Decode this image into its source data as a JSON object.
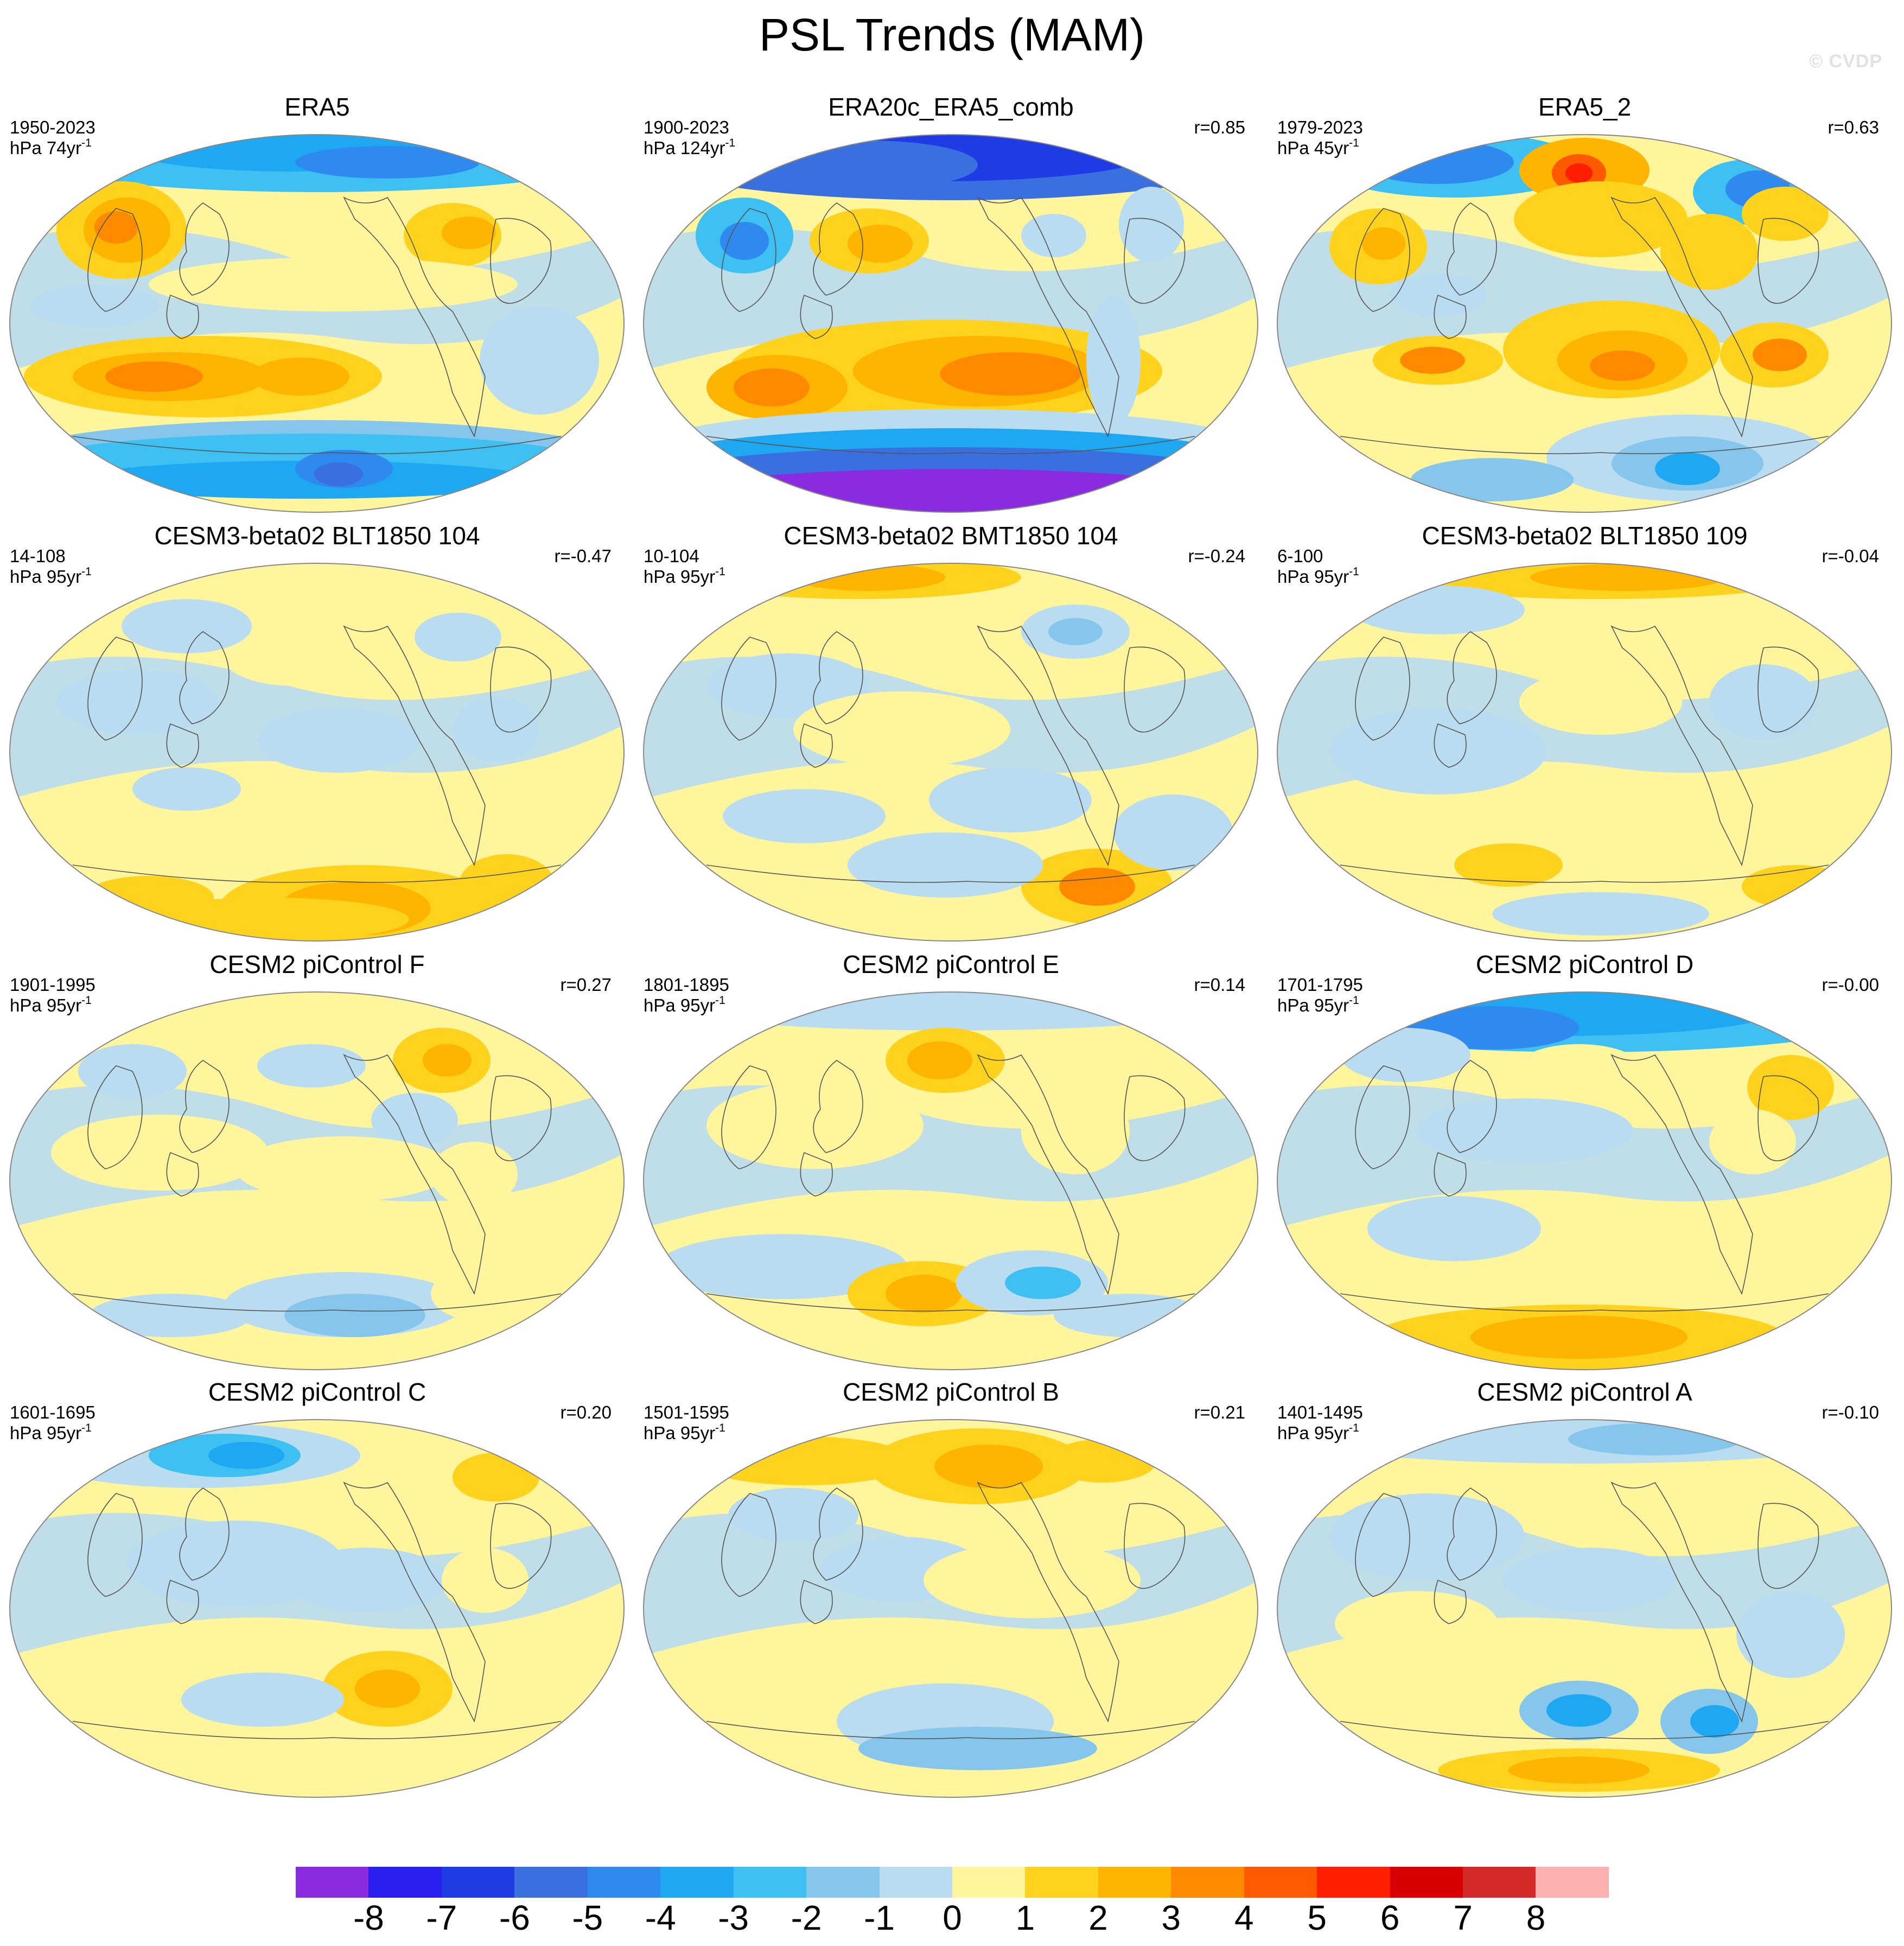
{
  "title": "PSL Trends (MAM)",
  "watermark": "© CVDP",
  "palette": {
    "ocean_base": "#b9dcf0",
    "land_base": "#fff59d",
    "coast": "#555555",
    "outline": "#888888"
  },
  "panels": [
    {
      "title": "ERA5",
      "period": "1950-2023",
      "units": "hPa 74yr",
      "r": "",
      "pattern": "era5"
    },
    {
      "title": "ERA20c_ERA5_comb",
      "period": "1900-2023",
      "units": "hPa 124yr",
      "r": "r=0.85",
      "pattern": "era20c"
    },
    {
      "title": "ERA5_2",
      "period": "1979-2023",
      "units": "hPa 45yr",
      "r": "r=0.63",
      "pattern": "era5_2"
    },
    {
      "title": "CESM3-beta02 BLT1850 104",
      "period": "14-108",
      "units": "hPa 95yr",
      "r": "r=-0.47",
      "pattern": "blt104"
    },
    {
      "title": "CESM3-beta02 BMT1850 104",
      "period": "10-104",
      "units": "hPa 95yr",
      "r": "r=-0.24",
      "pattern": "bmt104"
    },
    {
      "title": "CESM3-beta02 BLT1850 109",
      "period": "6-100",
      "units": "hPa 95yr",
      "r": "r=-0.04",
      "pattern": "blt109"
    },
    {
      "title": "CESM2 piControl F",
      "period": "1901-1995",
      "units": "hPa 95yr",
      "r": "r=0.27",
      "pattern": "picF"
    },
    {
      "title": "CESM2 piControl E",
      "period": "1801-1895",
      "units": "hPa 95yr",
      "r": "r=0.14",
      "pattern": "picE"
    },
    {
      "title": "CESM2 piControl D",
      "period": "1701-1795",
      "units": "hPa 95yr",
      "r": "r=-0.00",
      "pattern": "picD"
    },
    {
      "title": "CESM2 piControl C",
      "period": "1601-1695",
      "units": "hPa 95yr",
      "r": "r=0.20",
      "pattern": "picC"
    },
    {
      "title": "CESM2 piControl B",
      "period": "1501-1595",
      "units": "hPa 95yr",
      "r": "r=0.21",
      "pattern": "picB"
    },
    {
      "title": "CESM2 piControl A",
      "period": "1401-1495",
      "units": "hPa 95yr",
      "r": "r=-0.10",
      "pattern": "picA"
    }
  ],
  "colorbar": {
    "colors": [
      "#8a2be2",
      "#2a1ef0",
      "#1e3be6",
      "#3a6fe0",
      "#2f8af0",
      "#1ea8f2",
      "#3ec0f2",
      "#86c6ec",
      "#b9dcf0",
      "#fff59d",
      "#ffd21e",
      "#ffb400",
      "#ff8a00",
      "#ff5a00",
      "#ff1e00",
      "#d80000",
      "#d42a2a",
      "#ffb0b0"
    ],
    "labels": [
      "-8",
      "-7",
      "-6",
      "-5",
      "-4",
      "-3",
      "-2",
      "-1",
      "0",
      "1",
      "2",
      "3",
      "4",
      "5",
      "6",
      "7",
      "8"
    ]
  }
}
